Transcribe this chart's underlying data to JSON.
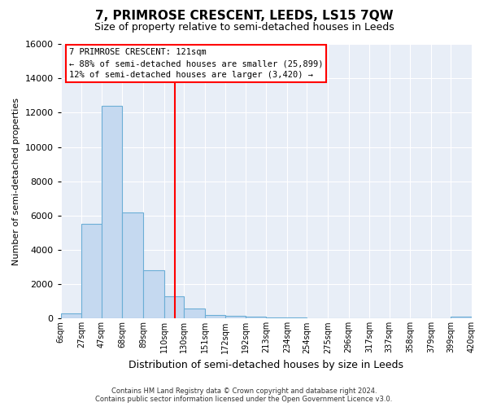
{
  "title": "7, PRIMROSE CRESCENT, LEEDS, LS15 7QW",
  "subtitle": "Size of property relative to semi-detached houses in Leeds",
  "xlabel": "Distribution of semi-detached houses by size in Leeds",
  "ylabel": "Number of semi-detached properties",
  "bin_labels": [
    "6sqm",
    "27sqm",
    "47sqm",
    "68sqm",
    "89sqm",
    "110sqm",
    "130sqm",
    "151sqm",
    "172sqm",
    "192sqm",
    "213sqm",
    "234sqm",
    "254sqm",
    "275sqm",
    "296sqm",
    "317sqm",
    "337sqm",
    "358sqm",
    "379sqm",
    "399sqm",
    "420sqm"
  ],
  "bar_values": [
    300,
    5500,
    12400,
    6200,
    2800,
    1300,
    600,
    220,
    150,
    100,
    60,
    50,
    40,
    30,
    0,
    0,
    0,
    0,
    0,
    90,
    0
  ],
  "bar_color": "#c5d9f0",
  "bar_edge_color": "#6baed6",
  "vline_x": 121,
  "vline_color": "red",
  "ylim": [
    0,
    16000
  ],
  "yticks": [
    0,
    2000,
    4000,
    6000,
    8000,
    10000,
    12000,
    14000,
    16000
  ],
  "annotation_title": "7 PRIMROSE CRESCENT: 121sqm",
  "annotation_line1": "← 88% of semi-detached houses are smaller (25,899)",
  "annotation_line2": "12% of semi-detached houses are larger (3,420) →",
  "footer_line1": "Contains HM Land Registry data © Crown copyright and database right 2024.",
  "footer_line2": "Contains public sector information licensed under the Open Government Licence v3.0.",
  "background_color": "#ffffff",
  "plot_bg_color": "#e8eef7",
  "grid_color": "#ffffff",
  "bin_edges": [
    6,
    27,
    47,
    68,
    89,
    110,
    130,
    151,
    172,
    192,
    213,
    234,
    254,
    275,
    296,
    317,
    337,
    358,
    379,
    399,
    420
  ]
}
